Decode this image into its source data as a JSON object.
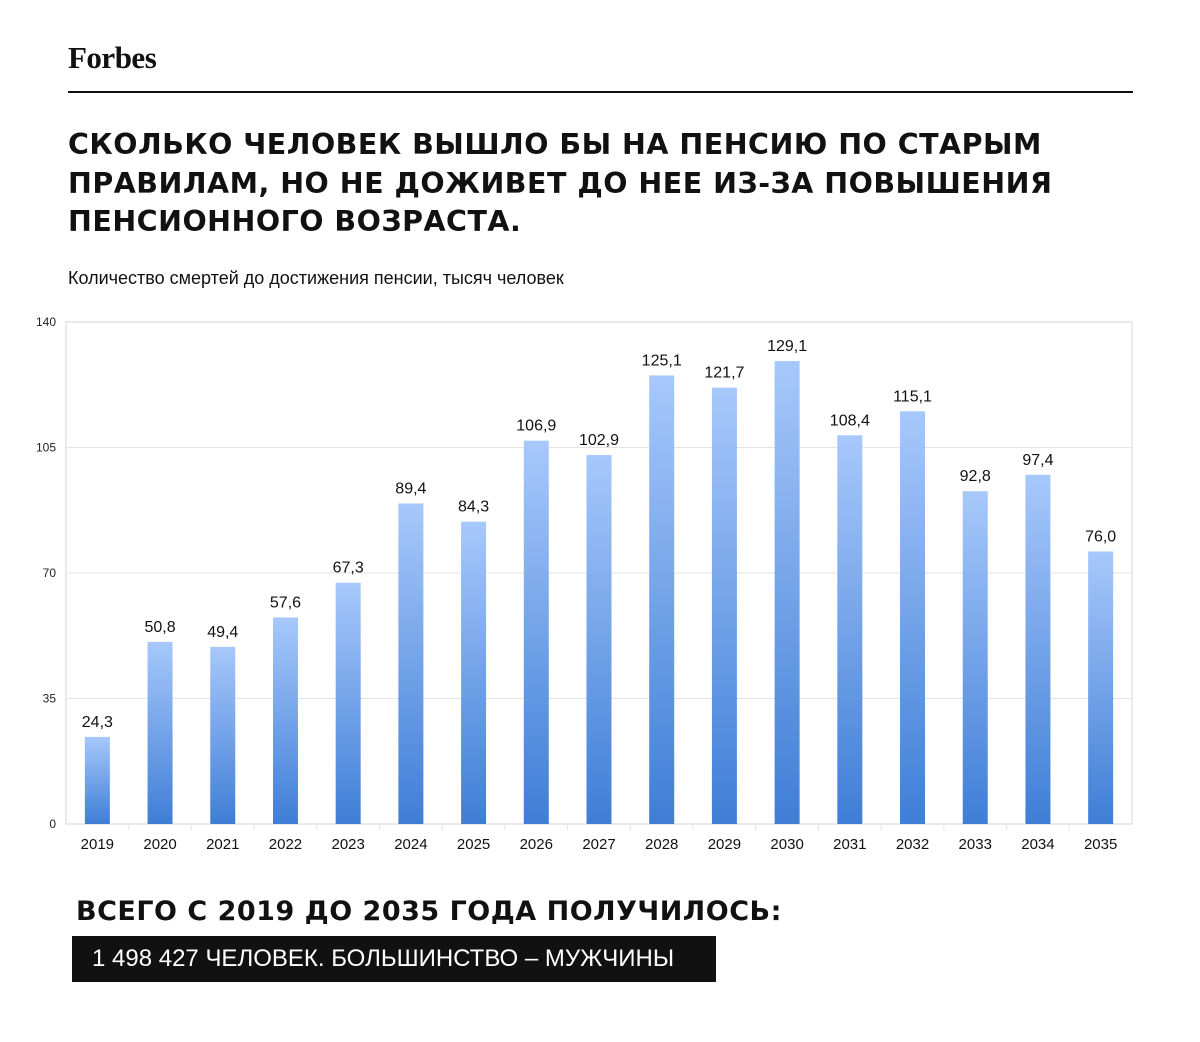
{
  "brand": {
    "logo_text": "Forbes"
  },
  "headline": "СКОЛЬКО ЧЕЛОВЕК ВЫШЛО БЫ НА ПЕНСИЮ ПО СТАРЫМ ПРАВИЛАМ, НО НЕ ДОЖИВЕТ ДО НЕЕ ИЗ-ЗА ПОВЫШЕНИЯ ПЕНСИОННОГО ВОЗРАСТА.",
  "subtitle": "Количество смертей до достижения пенсии, тысяч человек",
  "chart_data": {
    "type": "bar",
    "title": "",
    "xlabel": "",
    "ylabel": "",
    "categories": [
      "2019",
      "2020",
      "2021",
      "2022",
      "2023",
      "2024",
      "2025",
      "2026",
      "2027",
      "2028",
      "2029",
      "2030",
      "2031",
      "2032",
      "2033",
      "2034",
      "2035"
    ],
    "values": [
      24.3,
      50.8,
      49.4,
      57.6,
      67.3,
      89.4,
      84.3,
      106.9,
      102.9,
      125.1,
      121.7,
      129.1,
      108.4,
      115.1,
      92.8,
      97.4,
      76.0
    ],
    "value_labels": [
      "24,3",
      "50,8",
      "49,4",
      "57,6",
      "67,3",
      "89,4",
      "84,3",
      "106,9",
      "102,9",
      "125,1",
      "121,7",
      "129,1",
      "108,4",
      "115,1",
      "92,8",
      "97,4",
      "76,0"
    ],
    "ylim": [
      0,
      140
    ],
    "yticks": [
      0,
      35,
      70,
      105,
      140
    ],
    "grid": true,
    "legend": "none",
    "bar_color_top": "#a7c8fb",
    "bar_color_bottom": "#3f7ed6",
    "gridline_color": "#e3e3e3"
  },
  "footer": {
    "total_title": "ВСЕГО С 2019 ДО 2035 ГОДА ПОЛУЧИЛОСЬ:",
    "total_value": "1 498 427 ЧЕЛОВЕК. БОЛЬШИНСТВО – МУЖЧИНЫ"
  }
}
